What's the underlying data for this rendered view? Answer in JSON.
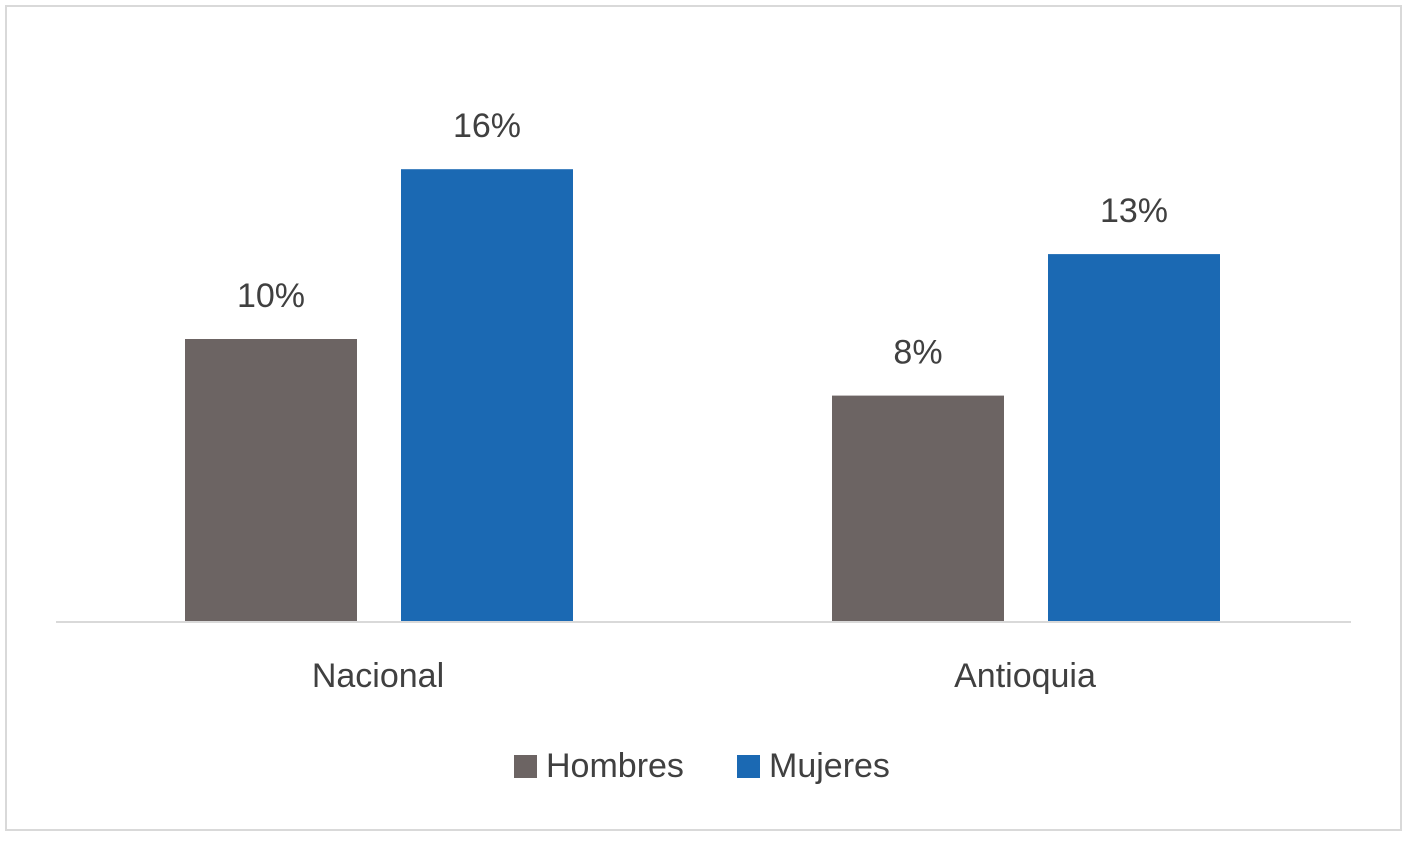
{
  "chart_data": {
    "type": "bar",
    "categories": [
      "Nacional",
      "Antioquia"
    ],
    "series": [
      {
        "name": "Hombres",
        "values": [
          10,
          8
        ],
        "labels": [
          "10%",
          "8%"
        ],
        "color": "#6c6463"
      },
      {
        "name": "Mujeres",
        "values": [
          16,
          13
        ],
        "labels": [
          "16%",
          "13%"
        ],
        "color": "#1b69b3"
      }
    ],
    "ylim": [
      0,
      20
    ],
    "grid": false,
    "legend_position": "bottom",
    "axis_color": "#d9d9d9",
    "label_color": "#404040"
  }
}
